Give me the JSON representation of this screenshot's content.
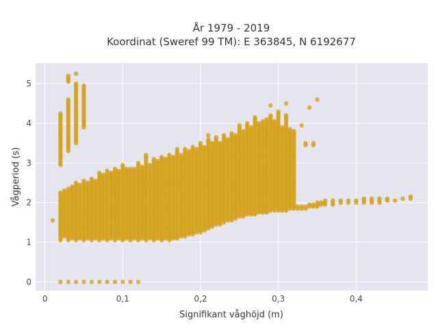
{
  "chart_data": {
    "type": "scatter",
    "title": "År 1979 - 2019",
    "subtitle": "Koordinat (Sweref 99 TM): E 363845, N 6192677",
    "xlabel": "Signifikant våghöjd (m)",
    "ylabel": "Vågperiod (s)",
    "xlim": [
      -0.012,
      0.492
    ],
    "ylim": [
      -0.22,
      5.52
    ],
    "x_ticks": [
      0,
      0.1,
      0.2,
      0.3,
      0.4
    ],
    "x_tick_labels": [
      "0",
      "0,1",
      "0,2",
      "0,3",
      "0,4"
    ],
    "y_ticks": [
      0,
      1,
      2,
      3,
      4,
      5
    ],
    "y_tick_labels": [
      "0",
      "1",
      "2",
      "3",
      "4",
      "5"
    ],
    "grid": true,
    "legend": "none",
    "colors": {
      "point": "#d4a017",
      "plot_bg": "#e5e5ef",
      "grid": "#ffffff"
    },
    "marker_step_y": 0.05,
    "columns": [
      [
        0.01,
        1.55,
        1.55
      ],
      [
        0.02,
        1.05,
        2.25
      ],
      [
        0.02,
        2.95,
        4.25
      ],
      [
        0.02,
        0,
        0
      ],
      [
        0.025,
        1.15,
        2.3
      ],
      [
        0.03,
        1.05,
        2.35
      ],
      [
        0.03,
        3.3,
        4.6
      ],
      [
        0.03,
        5.05,
        5.2
      ],
      [
        0.03,
        0,
        0
      ],
      [
        0.035,
        1.1,
        2.4
      ],
      [
        0.04,
        1.05,
        2.5
      ],
      [
        0.04,
        3.5,
        5.0
      ],
      [
        0.04,
        5.25,
        5.25
      ],
      [
        0.04,
        0,
        0
      ],
      [
        0.045,
        1.1,
        2.45
      ],
      [
        0.05,
        1.05,
        2.55
      ],
      [
        0.05,
        3.9,
        4.95
      ],
      [
        0.05,
        0,
        0
      ],
      [
        0.055,
        1.1,
        2.5
      ],
      [
        0.06,
        1.05,
        2.6
      ],
      [
        0.06,
        0,
        0
      ],
      [
        0.065,
        1.1,
        2.55
      ],
      [
        0.07,
        1.05,
        2.75
      ],
      [
        0.07,
        0,
        0
      ],
      [
        0.075,
        1.1,
        2.7
      ],
      [
        0.08,
        1.05,
        2.8
      ],
      [
        0.08,
        0,
        0
      ],
      [
        0.085,
        1.1,
        2.75
      ],
      [
        0.09,
        1.05,
        2.85
      ],
      [
        0.09,
        0,
        0
      ],
      [
        0.095,
        1.1,
        2.8
      ],
      [
        0.1,
        1.05,
        2.95
      ],
      [
        0.1,
        0,
        0
      ],
      [
        0.105,
        1.1,
        2.85
      ],
      [
        0.11,
        1.05,
        2.85
      ],
      [
        0.11,
        0,
        0
      ],
      [
        0.115,
        1.1,
        2.85
      ],
      [
        0.12,
        1.05,
        3.0
      ],
      [
        0.12,
        0,
        0
      ],
      [
        0.125,
        1.1,
        2.9
      ],
      [
        0.13,
        1.05,
        3.2
      ],
      [
        0.135,
        1.1,
        2.95
      ],
      [
        0.14,
        1.05,
        3.1
      ],
      [
        0.145,
        1.1,
        3.05
      ],
      [
        0.15,
        1.05,
        3.15
      ],
      [
        0.155,
        1.1,
        3.1
      ],
      [
        0.16,
        1.05,
        3.2
      ],
      [
        0.165,
        1.1,
        3.15
      ],
      [
        0.17,
        1.1,
        3.35
      ],
      [
        0.175,
        1.15,
        3.2
      ],
      [
        0.18,
        1.15,
        3.35
      ],
      [
        0.185,
        1.2,
        3.3
      ],
      [
        0.19,
        1.2,
        3.4
      ],
      [
        0.195,
        1.25,
        3.35
      ],
      [
        0.2,
        1.25,
        3.5
      ],
      [
        0.205,
        1.3,
        3.4
      ],
      [
        0.21,
        1.35,
        3.6
      ],
      [
        0.21,
        3.7,
        3.7
      ],
      [
        0.215,
        1.4,
        3.5
      ],
      [
        0.22,
        1.45,
        3.65
      ],
      [
        0.225,
        1.45,
        3.5
      ],
      [
        0.23,
        1.5,
        3.7
      ],
      [
        0.235,
        1.55,
        3.6
      ],
      [
        0.24,
        1.55,
        3.75
      ],
      [
        0.245,
        1.6,
        3.7
      ],
      [
        0.25,
        1.65,
        3.95
      ],
      [
        0.255,
        1.65,
        3.8
      ],
      [
        0.26,
        1.7,
        4.0
      ],
      [
        0.265,
        1.7,
        3.9
      ],
      [
        0.27,
        1.7,
        4.15
      ],
      [
        0.275,
        1.75,
        4.0
      ],
      [
        0.28,
        1.75,
        4.05
      ],
      [
        0.285,
        1.75,
        4.1
      ],
      [
        0.29,
        1.8,
        4.2
      ],
      [
        0.29,
        4.45,
        4.45
      ],
      [
        0.295,
        1.8,
        4.05
      ],
      [
        0.3,
        1.8,
        4.3
      ],
      [
        0.305,
        1.8,
        3.9
      ],
      [
        0.31,
        1.8,
        4.2
      ],
      [
        0.31,
        4.5,
        4.5
      ],
      [
        0.315,
        1.85,
        3.85
      ],
      [
        0.32,
        1.85,
        3.8
      ],
      [
        0.325,
        1.85,
        1.9
      ],
      [
        0.33,
        1.85,
        1.9
      ],
      [
        0.33,
        3.95,
        3.95
      ],
      [
        0.335,
        1.85,
        1.9
      ],
      [
        0.335,
        3.45,
        3.5
      ],
      [
        0.34,
        1.9,
        1.95
      ],
      [
        0.34,
        4.4,
        4.4
      ],
      [
        0.345,
        1.9,
        1.95
      ],
      [
        0.345,
        3.45,
        3.5
      ],
      [
        0.35,
        1.9,
        2.0
      ],
      [
        0.35,
        4.6,
        4.6
      ],
      [
        0.355,
        1.95,
        2.0
      ],
      [
        0.36,
        1.95,
        2.05
      ],
      [
        0.37,
        1.95,
        2.05
      ],
      [
        0.38,
        2.0,
        2.05
      ],
      [
        0.39,
        2.0,
        2.05
      ],
      [
        0.4,
        2.0,
        2.05
      ],
      [
        0.41,
        2.0,
        2.1
      ],
      [
        0.42,
        2.0,
        2.1
      ],
      [
        0.43,
        2.0,
        2.1
      ],
      [
        0.44,
        2.05,
        2.1
      ],
      [
        0.45,
        2.05,
        2.05
      ],
      [
        0.46,
        2.1,
        2.1
      ],
      [
        0.47,
        2.1,
        2.15
      ]
    ]
  }
}
